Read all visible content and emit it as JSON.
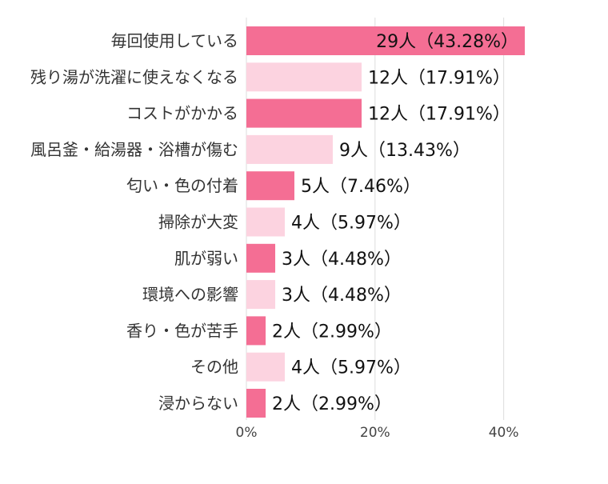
{
  "chart_data": {
    "type": "bar",
    "orientation": "horizontal",
    "categories": [
      "毎回使用している",
      "残り湯が洗濯に使えなくなる",
      "コストがかかる",
      "風呂釜・給湯器・浴槽が傷む",
      "匂い・色の付着",
      "掃除が大変",
      "肌が弱い",
      "環境への影響",
      "香り・色が苦手",
      "その他",
      "浸からない"
    ],
    "values": [
      43.28,
      17.91,
      17.91,
      13.43,
      7.46,
      5.97,
      4.48,
      4.48,
      2.99,
      5.97,
      2.99
    ],
    "data_labels": [
      "29人（43.28%）",
      "12人（17.91%）",
      "12人（17.91%）",
      "9人（13.43%）",
      "5人（7.46%）",
      "4人（5.97%）",
      "3人（4.48%）",
      "3人（4.48%）",
      "2人（2.99%）",
      "4人（5.97%）",
      "2人（2.99%）"
    ],
    "x_ticks": [
      "0%",
      "20%",
      "40%"
    ],
    "x_tick_values": [
      0,
      20,
      40
    ],
    "xlim": [
      0,
      43.28
    ],
    "grid": true,
    "colors": {
      "dark": "#f46e94",
      "light": "#fcd3e0",
      "grid": "#dddddd",
      "tick_text": "#444444",
      "category_text": "#333333",
      "label_text": "#111111"
    }
  }
}
